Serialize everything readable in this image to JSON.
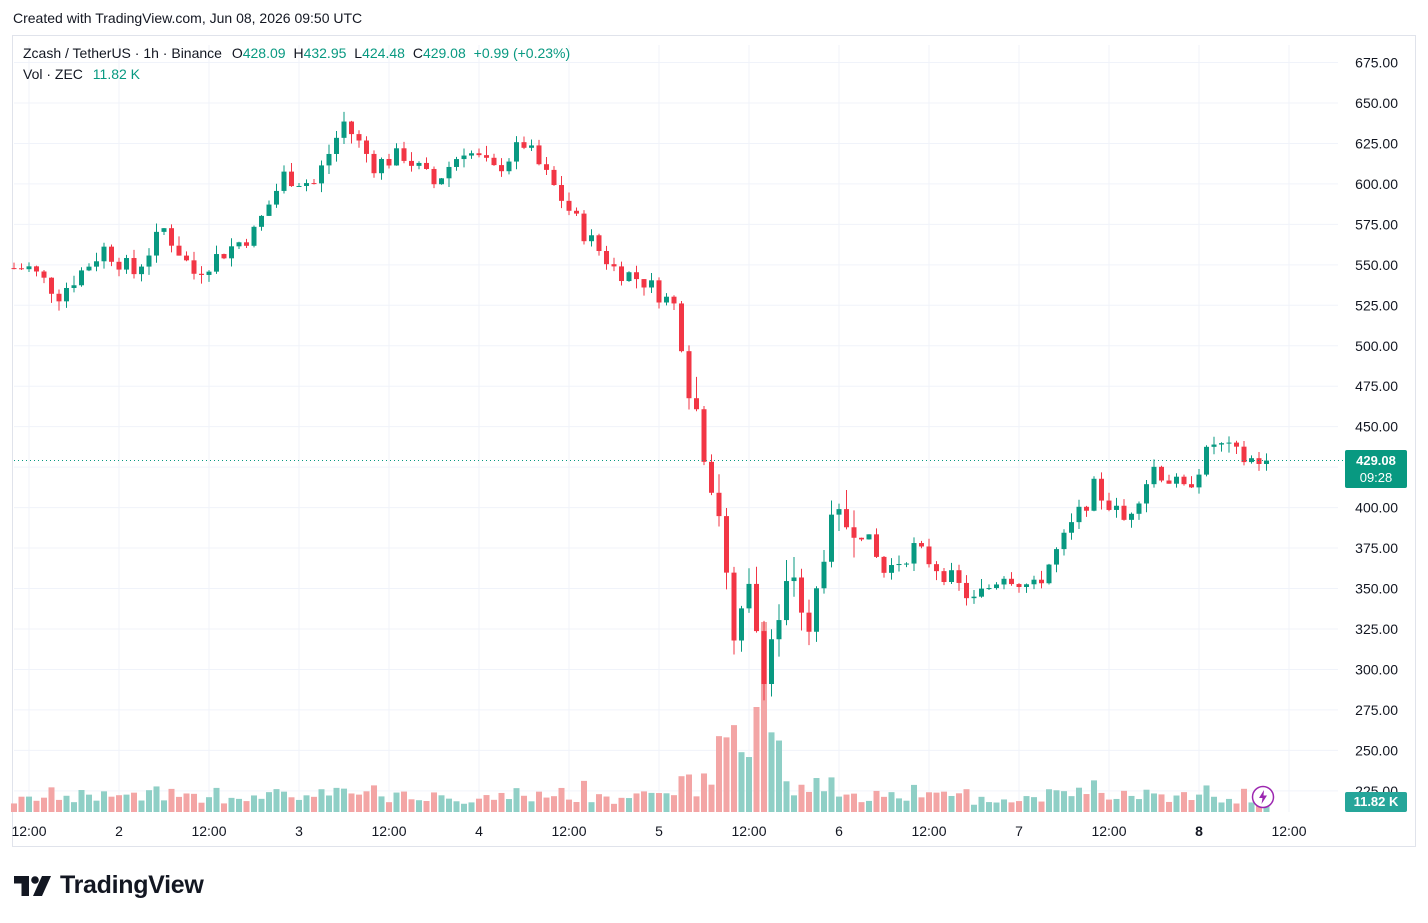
{
  "header": {
    "created_text": "Created with TradingView.com, Jun 08, 2026 09:50 UTC"
  },
  "legend": {
    "symbol": "Zcash / TetherUS · 1h · Binance",
    "o_label": "O",
    "o_value": "428.09",
    "h_label": "H",
    "h_value": "432.95",
    "l_label": "L",
    "l_value": "424.48",
    "c_label": "C",
    "c_value": "429.08",
    "change": "+0.99 (+0.23%)",
    "vol_label": "Vol · ZEC",
    "vol_value": "11.82 K"
  },
  "price_tag": {
    "price": "429.08",
    "countdown": "09:28"
  },
  "volume_tag": "11.82 K",
  "footer": {
    "brand": "TradingView"
  },
  "colors": {
    "up": "#089981",
    "down": "#f23645",
    "vol_up": "#8fcfc6",
    "vol_down": "#f3a5a5",
    "grid": "#f0f3fa"
  },
  "chart_data": {
    "type": "candlestick",
    "title": "Zcash / TetherUS · 1h · Binance",
    "y_axis": {
      "ticks": [
        "225.00",
        "250.00",
        "275.00",
        "300.00",
        "325.00",
        "350.00",
        "375.00",
        "400.00",
        "425.00",
        "450.00",
        "475.00",
        "500.00",
        "525.00",
        "550.00",
        "575.00",
        "600.00",
        "625.00",
        "650.00",
        "675.00"
      ],
      "range": [
        210,
        690
      ]
    },
    "x_axis": {
      "ticks": [
        "12:00",
        "2",
        "12:00",
        "3",
        "12:00",
        "4",
        "12:00",
        "5",
        "12:00",
        "6",
        "12:00",
        "7",
        "12:00",
        "8",
        "12:00"
      ]
    },
    "last_price": 429.08,
    "close_path": [
      [
        "Jun 1 12:00",
        548
      ],
      [
        "Jun 1 16:00",
        532
      ],
      [
        "Jun 1 22:00",
        560
      ],
      [
        "Jun 2 02:00",
        545
      ],
      [
        "Jun 2 06:00",
        572
      ],
      [
        "Jun 2 10:00",
        545
      ],
      [
        "Jun 2 14:00",
        558
      ],
      [
        "Jun 2 18:00",
        570
      ],
      [
        "Jun 2 22:00",
        605
      ],
      [
        "Jun 3 02:00",
        600
      ],
      [
        "Jun 3 06:00",
        638
      ],
      [
        "Jun 3 10:00",
        612
      ],
      [
        "Jun 3 14:00",
        618
      ],
      [
        "Jun 3 18:00",
        600
      ],
      [
        "Jun 3 22:00",
        622
      ],
      [
        "Jun 4 02:00",
        608
      ],
      [
        "Jun 4 06:00",
        625
      ],
      [
        "Jun 4 10:00",
        598
      ],
      [
        "Jun 4 14:00",
        570
      ],
      [
        "Jun 4 18:00",
        548
      ],
      [
        "Jun 4 22:00",
        540
      ],
      [
        "Jun 5 02:00",
        525
      ],
      [
        "Jun 5 04:00",
        480
      ],
      [
        "Jun 5 06:00",
        440
      ],
      [
        "Jun 5 08:00",
        400
      ],
      [
        "Jun 5 10:00",
        310
      ],
      [
        "Jun 5 12:00",
        345
      ],
      [
        "Jun 5 14:00",
        305
      ],
      [
        "Jun 5 18:00",
        360
      ],
      [
        "Jun 5 20:00",
        315
      ],
      [
        "Jun 5 22:00",
        378
      ],
      [
        "Jun 6 02:00",
        395
      ],
      [
        "Jun 6 06:00",
        360
      ],
      [
        "Jun 6 10:00",
        375
      ],
      [
        "Jun 6 14:00",
        360
      ],
      [
        "Jun 6 18:00",
        342
      ],
      [
        "Jun 6 22:00",
        360
      ],
      [
        "Jun 7 02:00",
        350
      ],
      [
        "Jun 7 06:00",
        380
      ],
      [
        "Jun 7 10:00",
        412
      ],
      [
        "Jun 7 14:00",
        392
      ],
      [
        "Jun 7 18:00",
        425
      ],
      [
        "Jun 7 22:00",
        410
      ],
      [
        "Jun 8 02:00",
        440
      ],
      [
        "Jun 8 06:00",
        430
      ],
      [
        "Jun 8 09:00",
        429.08
      ]
    ]
  }
}
